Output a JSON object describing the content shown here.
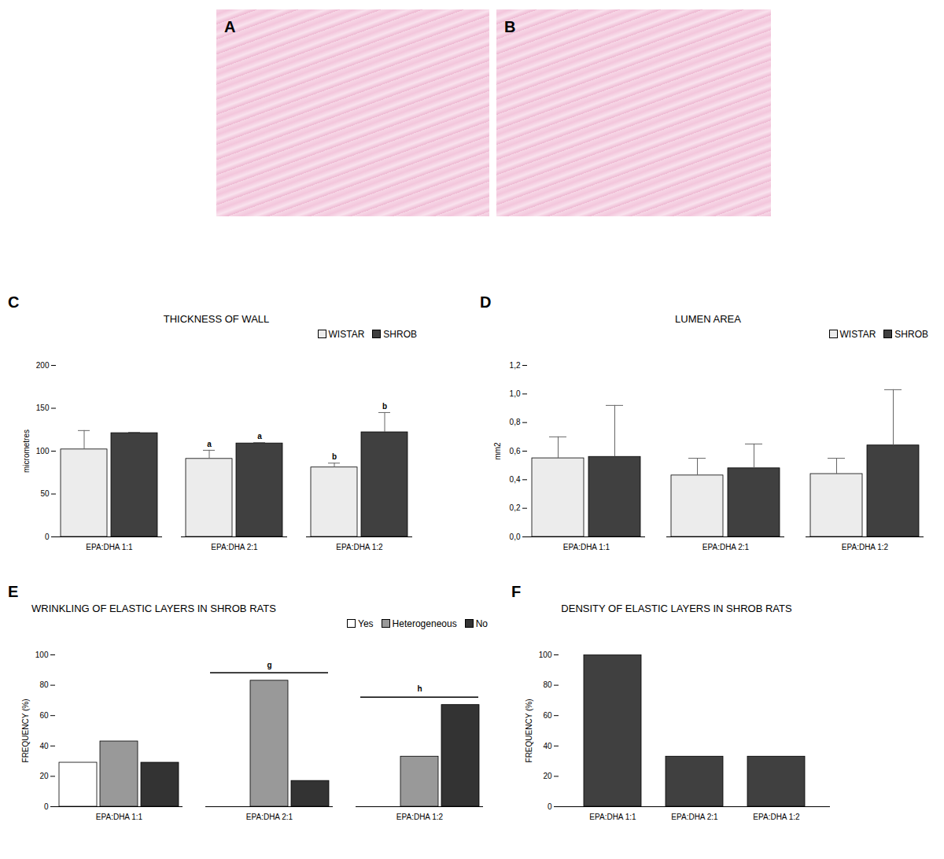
{
  "images": [
    {
      "panel_label": "A"
    },
    {
      "panel_label": "B"
    }
  ],
  "chart_data": [
    {
      "type": "bar",
      "panel_label": "C",
      "title": "THICKNESS OF WALL",
      "y_label": "micrometres",
      "categories": [
        "EPA:DHA 1:1",
        "EPA:DHA 2:1",
        "EPA:DHA 1:2"
      ],
      "series": [
        {
          "name": "WISTAR",
          "color": "#ececec",
          "values": [
            102,
            91,
            81
          ],
          "errors": [
            22,
            10,
            5
          ]
        },
        {
          "name": "SHROB",
          "color": "#404040",
          "values": [
            121,
            109,
            122
          ],
          "errors": [
            1,
            1,
            23
          ]
        }
      ],
      "ylim": [
        0,
        200
      ],
      "yticks": [
        0,
        50,
        100,
        150,
        200
      ],
      "legend": "top-right",
      "annotations": [
        {
          "text": "a",
          "category": "EPA:DHA 2:1",
          "series": "WISTAR"
        },
        {
          "text": "a",
          "category": "EPA:DHA 2:1",
          "series": "SHROB"
        },
        {
          "text": "b",
          "category": "EPA:DHA 1:2",
          "series": "WISTAR"
        },
        {
          "text": "b",
          "category": "EPA:DHA 1:2",
          "series": "SHROB"
        }
      ]
    },
    {
      "type": "bar",
      "panel_label": "D",
      "title": "LUMEN AREA",
      "y_label": "mm2",
      "categories": [
        "EPA:DHA 1:1",
        "EPA:DHA 2:1",
        "EPA:DHA 1:2"
      ],
      "series": [
        {
          "name": "WISTAR",
          "color": "#ececec",
          "values": [
            0.55,
            0.43,
            0.44
          ],
          "errors": [
            0.15,
            0.12,
            0.11
          ]
        },
        {
          "name": "SHROB",
          "color": "#404040",
          "values": [
            0.56,
            0.48,
            0.64
          ],
          "errors": [
            0.36,
            0.17,
            0.39
          ]
        }
      ],
      "ylim": [
        0,
        1.2
      ],
      "yticks": [
        {
          "value": 0,
          "label": "0,0"
        },
        {
          "value": 0.2,
          "label": "0,2"
        },
        {
          "value": 0.4,
          "label": "0,4"
        },
        {
          "value": 0.6,
          "label": "0,6"
        },
        {
          "value": 0.8,
          "label": "0,8"
        },
        {
          "value": 1.0,
          "label": "1,0"
        },
        {
          "value": 1.2,
          "label": "1,2"
        }
      ],
      "legend": "top-right"
    },
    {
      "type": "bar",
      "panel_label": "E",
      "title": "WRINKLING OF ELASTIC LAYERS IN SHROB RATS",
      "y_label": "FREQUENCY (%)",
      "categories": [
        "EPA:DHA 1:1",
        "EPA:DHA 2:1",
        "EPA:DHA 1:2"
      ],
      "series": [
        {
          "name": "Yes",
          "color": "#ffffff",
          "values": [
            29,
            0,
            0
          ]
        },
        {
          "name": "Heterogeneous",
          "color": "#999999",
          "values": [
            43,
            83,
            33
          ]
        },
        {
          "name": "No",
          "color": "#333333",
          "values": [
            29,
            17,
            67
          ]
        }
      ],
      "ylim": [
        0,
        100
      ],
      "yticks": [
        0,
        20,
        40,
        60,
        80,
        100
      ],
      "legend": "top-right",
      "annotations": [
        {
          "text": "g",
          "category": "EPA:DHA 2:1"
        },
        {
          "text": "h",
          "category": "EPA:DHA 1:2"
        }
      ]
    },
    {
      "type": "bar",
      "panel_label": "F",
      "title": "DENSITY OF ELASTIC LAYERS IN SHROB RATS",
      "y_label": "FREQUENCY (%)",
      "categories": [
        "EPA:DHA 1:1",
        "EPA:DHA 2:1",
        "EPA:DHA 1:2"
      ],
      "values": [
        100,
        33,
        33
      ],
      "color": "#404040",
      "ylim": [
        0,
        100
      ],
      "yticks": [
        0,
        20,
        40,
        60,
        80,
        100
      ]
    }
  ]
}
